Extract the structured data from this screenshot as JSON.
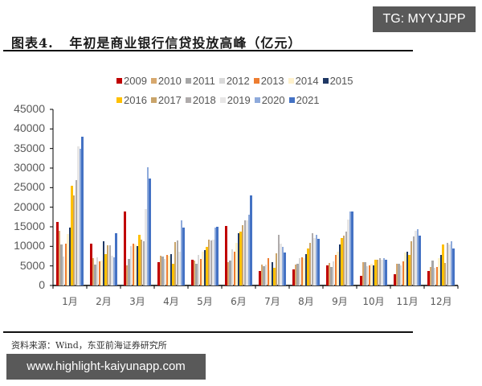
{
  "watermark_top": "TG: MYYJJPP",
  "title": "图表4.   年初是商业银行信贷投放高峰（亿元）",
  "source": "资料来源：Wind，东亚前海证券研究所",
  "watermark_bottom": "www.highlight-kaiyunapp.com",
  "legend": {
    "row1": [
      "2009",
      "2010",
      "2011",
      "2012",
      "2013",
      "2014",
      "2015"
    ],
    "row2": [
      "2016",
      "2017",
      "2018",
      "2019",
      "2020",
      "2021"
    ]
  },
  "chart_data": {
    "type": "bar",
    "title": "年初是商业银行信贷投放高峰（亿元）",
    "xlabel": "",
    "ylabel": "亿元",
    "ylim": [
      0,
      45000
    ],
    "yticks": [
      0,
      5000,
      10000,
      15000,
      20000,
      25000,
      30000,
      35000,
      40000,
      45000
    ],
    "grid": false,
    "legend_position": "top",
    "categories": [
      "1月",
      "2月",
      "3月",
      "4月",
      "5月",
      "6月",
      "7月",
      "8月",
      "9月",
      "10月",
      "11月",
      "12月"
    ],
    "series": [
      {
        "name": "2009",
        "color": "#c00000",
        "values": [
          16200,
          10700,
          18900,
          5900,
          6600,
          15300,
          3600,
          4100,
          5200,
          2500,
          2900,
          3800
        ]
      },
      {
        "name": "2010",
        "color": "#d7a86e",
        "values": [
          13900,
          7000,
          5100,
          7700,
          6400,
          6000,
          5300,
          5300,
          5800,
          5900,
          5600,
          4800
        ]
      },
      {
        "name": "2011",
        "color": "#a6a6a6",
        "values": [
          10400,
          5400,
          6800,
          7400,
          5500,
          6300,
          4900,
          5500,
          4700,
          5900,
          5600,
          6400
        ]
      },
      {
        "name": "2012",
        "color": "#d9d9d9",
        "values": [
          7400,
          7100,
          10100,
          6800,
          7900,
          9200,
          5400,
          7000,
          6200,
          5000,
          5200,
          4500
        ]
      },
      {
        "name": "2013",
        "color": "#ed7d31",
        "values": [
          10700,
          6200,
          10600,
          7900,
          6700,
          8600,
          7000,
          7100,
          7900,
          5100,
          6200,
          4800
        ]
      },
      {
        "name": "2014",
        "color": "#fff2cc",
        "values": [
          13200,
          6400,
          10500,
          7700,
          8700,
          10800,
          3900,
          7000,
          8600,
          5500,
          8500,
          7000
        ]
      },
      {
        "name": "2015",
        "color": "#1f3864",
        "values": [
          14700,
          11400,
          10000,
          8100,
          9000,
          13300,
          5900,
          8100,
          10500,
          5100,
          8700,
          7800
        ]
      },
      {
        "name": "2016",
        "color": "#ffc000",
        "values": [
          25400,
          8000,
          13000,
          5600,
          9900,
          13800,
          4600,
          9500,
          12200,
          6500,
          7900,
          10400
        ]
      },
      {
        "name": "2017",
        "color": "#c9a46a",
        "values": [
          23100,
          10300,
          11800,
          11000,
          11700,
          15400,
          8300,
          10900,
          12700,
          6600,
          11200,
          5800
        ]
      },
      {
        "name": "2018",
        "color": "#afabab",
        "values": [
          26900,
          10200,
          11200,
          11500,
          11500,
          16700,
          12900,
          13300,
          13800,
          7000,
          12500,
          10800
        ]
      },
      {
        "name": "2019",
        "color": "#e7e6e6",
        "values": [
          35600,
          7700,
          19600,
          8700,
          11800,
          16600,
          10600,
          12100,
          16900,
          6600,
          13900,
          10500
        ]
      },
      {
        "name": "2020",
        "color": "#8eaadb",
        "values": [
          34900,
          7200,
          30300,
          16600,
          14800,
          18100,
          9900,
          12900,
          19000,
          6900,
          14300,
          11400
        ]
      },
      {
        "name": "2021",
        "color": "#4472c4",
        "values": [
          38000,
          13400,
          27300,
          14700,
          15000,
          23000,
          8400,
          12000,
          19000,
          6600,
          12700,
          9400
        ]
      }
    ]
  }
}
